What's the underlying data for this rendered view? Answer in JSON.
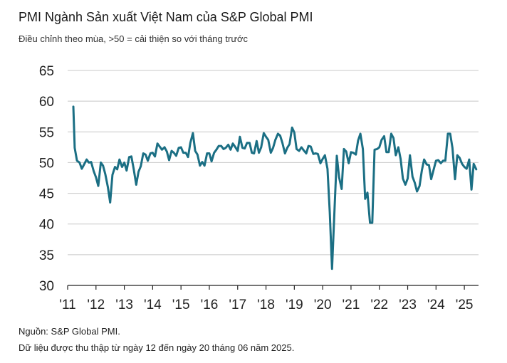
{
  "header": {
    "title": "PMI Ngành Sản xuất Việt Nam của S&P Global PMI",
    "subtitle": "Điều chỉnh theo mùa, >50 = cải thiện so với tháng trước"
  },
  "footer": {
    "source": "Nguồn: S&P Global PMI.",
    "note": "Dữ liệu được thu thập từ ngày 12 đến ngày 20 tháng 06 năm 2025."
  },
  "colors": {
    "line": "#1b6f84",
    "grid": "#c8c8c8",
    "axis": "#222222"
  },
  "chart_data": {
    "type": "line",
    "title": "PMI Ngành Sản xuất Việt Nam của S&P Global PMI",
    "subtitle": "Điều chỉnh theo mùa, >50 = cải thiện so với tháng trước",
    "xlabel": "",
    "ylabel": "",
    "ylim": [
      30,
      65
    ],
    "yticks": [
      30,
      35,
      40,
      45,
      50,
      55,
      60,
      65
    ],
    "xlim": [
      2011.0,
      2025.5
    ],
    "xticks": [
      {
        "value": 2011,
        "label": "'11"
      },
      {
        "value": 2012,
        "label": "'12"
      },
      {
        "value": 2013,
        "label": "'13"
      },
      {
        "value": 2014,
        "label": "'14"
      },
      {
        "value": 2015,
        "label": "'15"
      },
      {
        "value": 2016,
        "label": "'16"
      },
      {
        "value": 2017,
        "label": "'17"
      },
      {
        "value": 2018,
        "label": "'18"
      },
      {
        "value": 2019,
        "label": "'19"
      },
      {
        "value": 2020,
        "label": "'20"
      },
      {
        "value": 2021,
        "label": "'21"
      },
      {
        "value": 2022,
        "label": "'22"
      },
      {
        "value": 2023,
        "label": "'23"
      },
      {
        "value": 2024,
        "label": "'24"
      },
      {
        "value": 2025,
        "label": "'25"
      }
    ],
    "grid": "horizontal",
    "legend": "none",
    "series": [
      {
        "x": [
          2011.2,
          2011.25,
          2011.33,
          2011.42,
          2011.5,
          2011.58,
          2011.67,
          2011.75,
          2011.83,
          2011.92,
          2012.0,
          2012.08,
          2012.17,
          2012.25,
          2012.33,
          2012.42,
          2012.5,
          2012.58,
          2012.67,
          2012.75,
          2012.83,
          2012.92,
          2013.0,
          2013.08,
          2013.17,
          2013.25,
          2013.33,
          2013.42,
          2013.5,
          2013.58,
          2013.67,
          2013.75,
          2013.83,
          2013.92,
          2014.0,
          2014.08,
          2014.17,
          2014.25,
          2014.33,
          2014.42,
          2014.5,
          2014.58,
          2014.67,
          2014.75,
          2014.83,
          2014.92,
          2015.0,
          2015.08,
          2015.17,
          2015.25,
          2015.33,
          2015.42,
          2015.5,
          2015.58,
          2015.67,
          2015.75,
          2015.83,
          2015.92,
          2016.0,
          2016.08,
          2016.17,
          2016.25,
          2016.33,
          2016.42,
          2016.5,
          2016.58,
          2016.67,
          2016.75,
          2016.83,
          2016.92,
          2017.0,
          2017.08,
          2017.17,
          2017.25,
          2017.33,
          2017.42,
          2017.5,
          2017.58,
          2017.67,
          2017.75,
          2017.83,
          2017.92,
          2018.0,
          2018.08,
          2018.17,
          2018.25,
          2018.33,
          2018.42,
          2018.5,
          2018.58,
          2018.67,
          2018.75,
          2018.83,
          2018.92,
          2019.0,
          2019.08,
          2019.17,
          2019.25,
          2019.33,
          2019.42,
          2019.5,
          2019.58,
          2019.67,
          2019.75,
          2019.83,
          2019.92,
          2020.0,
          2020.08,
          2020.17,
          2020.25,
          2020.33,
          2020.42,
          2020.5,
          2020.58,
          2020.67,
          2020.75,
          2020.83,
          2020.92,
          2021.0,
          2021.08,
          2021.17,
          2021.25,
          2021.33,
          2021.42,
          2021.5,
          2021.58,
          2021.67,
          2021.75,
          2021.83,
          2021.92,
          2022.0,
          2022.08,
          2022.17,
          2022.25,
          2022.33,
          2022.42,
          2022.5,
          2022.58,
          2022.67,
          2022.75,
          2022.83,
          2022.92,
          2023.0,
          2023.08,
          2023.17,
          2023.25,
          2023.33,
          2023.42,
          2023.5,
          2023.58,
          2023.67,
          2023.75,
          2023.83,
          2023.92,
          2024.0,
          2024.08,
          2024.17,
          2024.25,
          2024.33,
          2024.42,
          2024.5,
          2024.58,
          2024.67,
          2024.75,
          2024.83,
          2024.92,
          2025.0,
          2025.08,
          2025.17,
          2025.25,
          2025.33,
          2025.42
        ],
        "values": [
          59.1,
          52.4,
          50.3,
          50.0,
          49.0,
          49.7,
          50.5,
          50.0,
          50.1,
          48.6,
          47.6,
          46.2,
          50.0,
          49.5,
          48.1,
          46.0,
          43.5,
          48.0,
          49.3,
          48.9,
          50.5,
          49.3,
          50.0,
          48.7,
          50.9,
          51.0,
          49.0,
          46.4,
          48.5,
          49.4,
          51.5,
          51.3,
          50.3,
          51.5,
          51.6,
          51.0,
          53.1,
          52.6,
          52.1,
          52.5,
          51.8,
          50.4,
          51.9,
          51.6,
          51.1,
          52.4,
          52.5,
          51.6,
          51.6,
          50.9,
          53.2,
          54.8,
          51.9,
          51.3,
          49.5,
          50.1,
          49.5,
          51.5,
          51.5,
          50.2,
          51.6,
          52.1,
          52.7,
          52.7,
          52.2,
          52.4,
          52.9,
          52.1,
          53.1,
          52.5,
          51.9,
          54.2,
          52.4,
          52.3,
          53.2,
          53.2,
          51.6,
          51.5,
          53.5,
          51.6,
          52.5,
          54.8,
          54.2,
          53.7,
          51.6,
          52.4,
          53.7,
          54.7,
          54.4,
          53.2,
          51.5,
          52.4,
          53.0,
          55.7,
          54.9,
          52.2,
          51.9,
          52.5,
          52.0,
          51.5,
          52.7,
          52.6,
          51.4,
          51.5,
          51.4,
          49.9,
          50.6,
          51.2,
          49.0,
          41.9,
          32.7,
          42.7,
          51.1,
          47.6,
          45.7,
          52.2,
          51.8,
          49.9,
          51.7,
          51.6,
          51.3,
          53.6,
          54.7,
          52.2,
          44.1,
          45.1,
          40.2,
          40.2,
          52.1,
          52.2,
          52.5,
          53.7,
          54.3,
          51.7,
          51.7,
          54.7,
          54.0,
          51.2,
          52.5,
          50.6,
          47.4,
          46.4,
          47.4,
          51.2,
          47.7,
          46.7,
          45.3,
          46.2,
          48.7,
          50.5,
          49.7,
          49.6,
          47.3,
          48.9,
          50.3,
          50.4,
          49.9,
          50.3,
          50.3,
          54.7,
          54.7,
          52.4,
          47.3,
          51.2,
          50.8,
          49.8,
          49.3,
          49.0,
          50.5,
          45.6,
          49.8,
          48.9
        ]
      }
    ]
  }
}
